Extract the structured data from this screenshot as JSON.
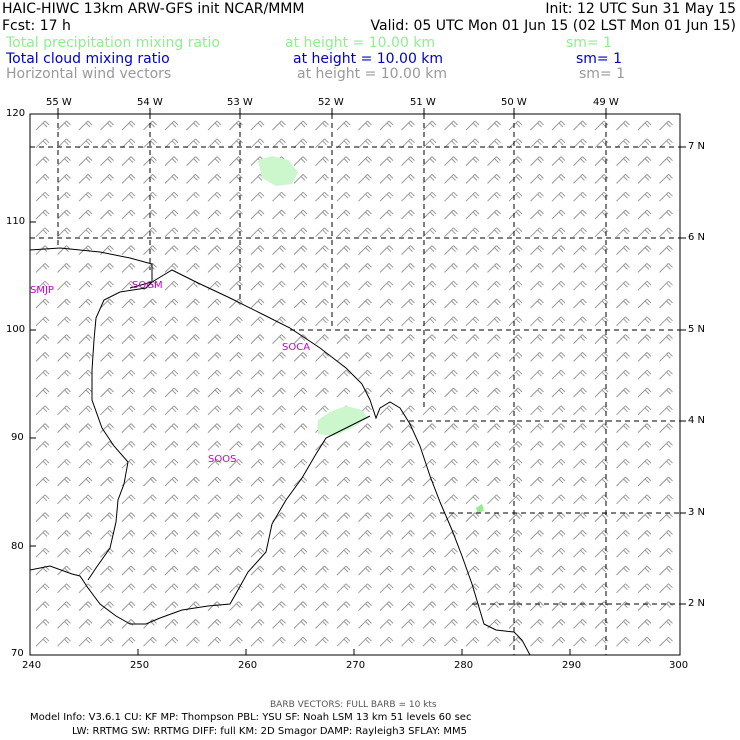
{
  "header": {
    "line1_left": "HAIC-HIWC 13km ARW-GFS init   NCAR/MMM",
    "line1_right": "Init: 12 UTC Sun 31 May 15",
    "line2_left": "Fcst:    17 h",
    "line2_right": "Valid: 05 UTC Mon 01 Jun 15 (02 LST Mon 01 Jun 15)"
  },
  "fields": [
    {
      "name": "Total precipitation mixing ratio",
      "height": "at height = 10.00 km",
      "sm": "sm= 1",
      "color": "#90ee90"
    },
    {
      "name": "Total cloud mixing ratio",
      "height": "at height = 10.00 km",
      "sm": "sm= 1",
      "color": "#0000cc"
    },
    {
      "name": "Horizontal wind vectors",
      "height": "at height = 10.00 km",
      "sm": "sm= 1",
      "color": "#999999"
    }
  ],
  "map": {
    "top_lon_labels": [
      "55 W",
      "54 W",
      "53 W",
      "52 W",
      "51 W",
      "50 W",
      "49 W"
    ],
    "right_lat_labels": [
      "7 N",
      "6 N",
      "5 N",
      "4 N",
      "3 N",
      "2 N"
    ],
    "left_y_labels": [
      "120",
      "110",
      "100",
      "90",
      "80",
      "70"
    ],
    "bottom_x_labels": [
      "240",
      "250",
      "260",
      "270",
      "280",
      "290",
      "300"
    ],
    "stations": [
      "SMJP",
      "SOGM",
      "SOCA",
      "SOOS"
    ],
    "station_color": "#cc00cc",
    "coast_color": "#000000",
    "barb_color": "#999999"
  },
  "footer": {
    "barb_note": "BARB VECTORS:  FULL BARB = 10 kts",
    "model_line1": "Model Info: V3.6.1     CU: KF       MP: Thompson     PBL: YSU      SF: Noah LSM      13 km    51 levels    60 sec",
    "model_line2": "LW: RRTMG     SW: RRTMG   DIFF: full     KM: 2D Smagor  DAMP: Rayleigh3   SFLAY: MM5"
  }
}
